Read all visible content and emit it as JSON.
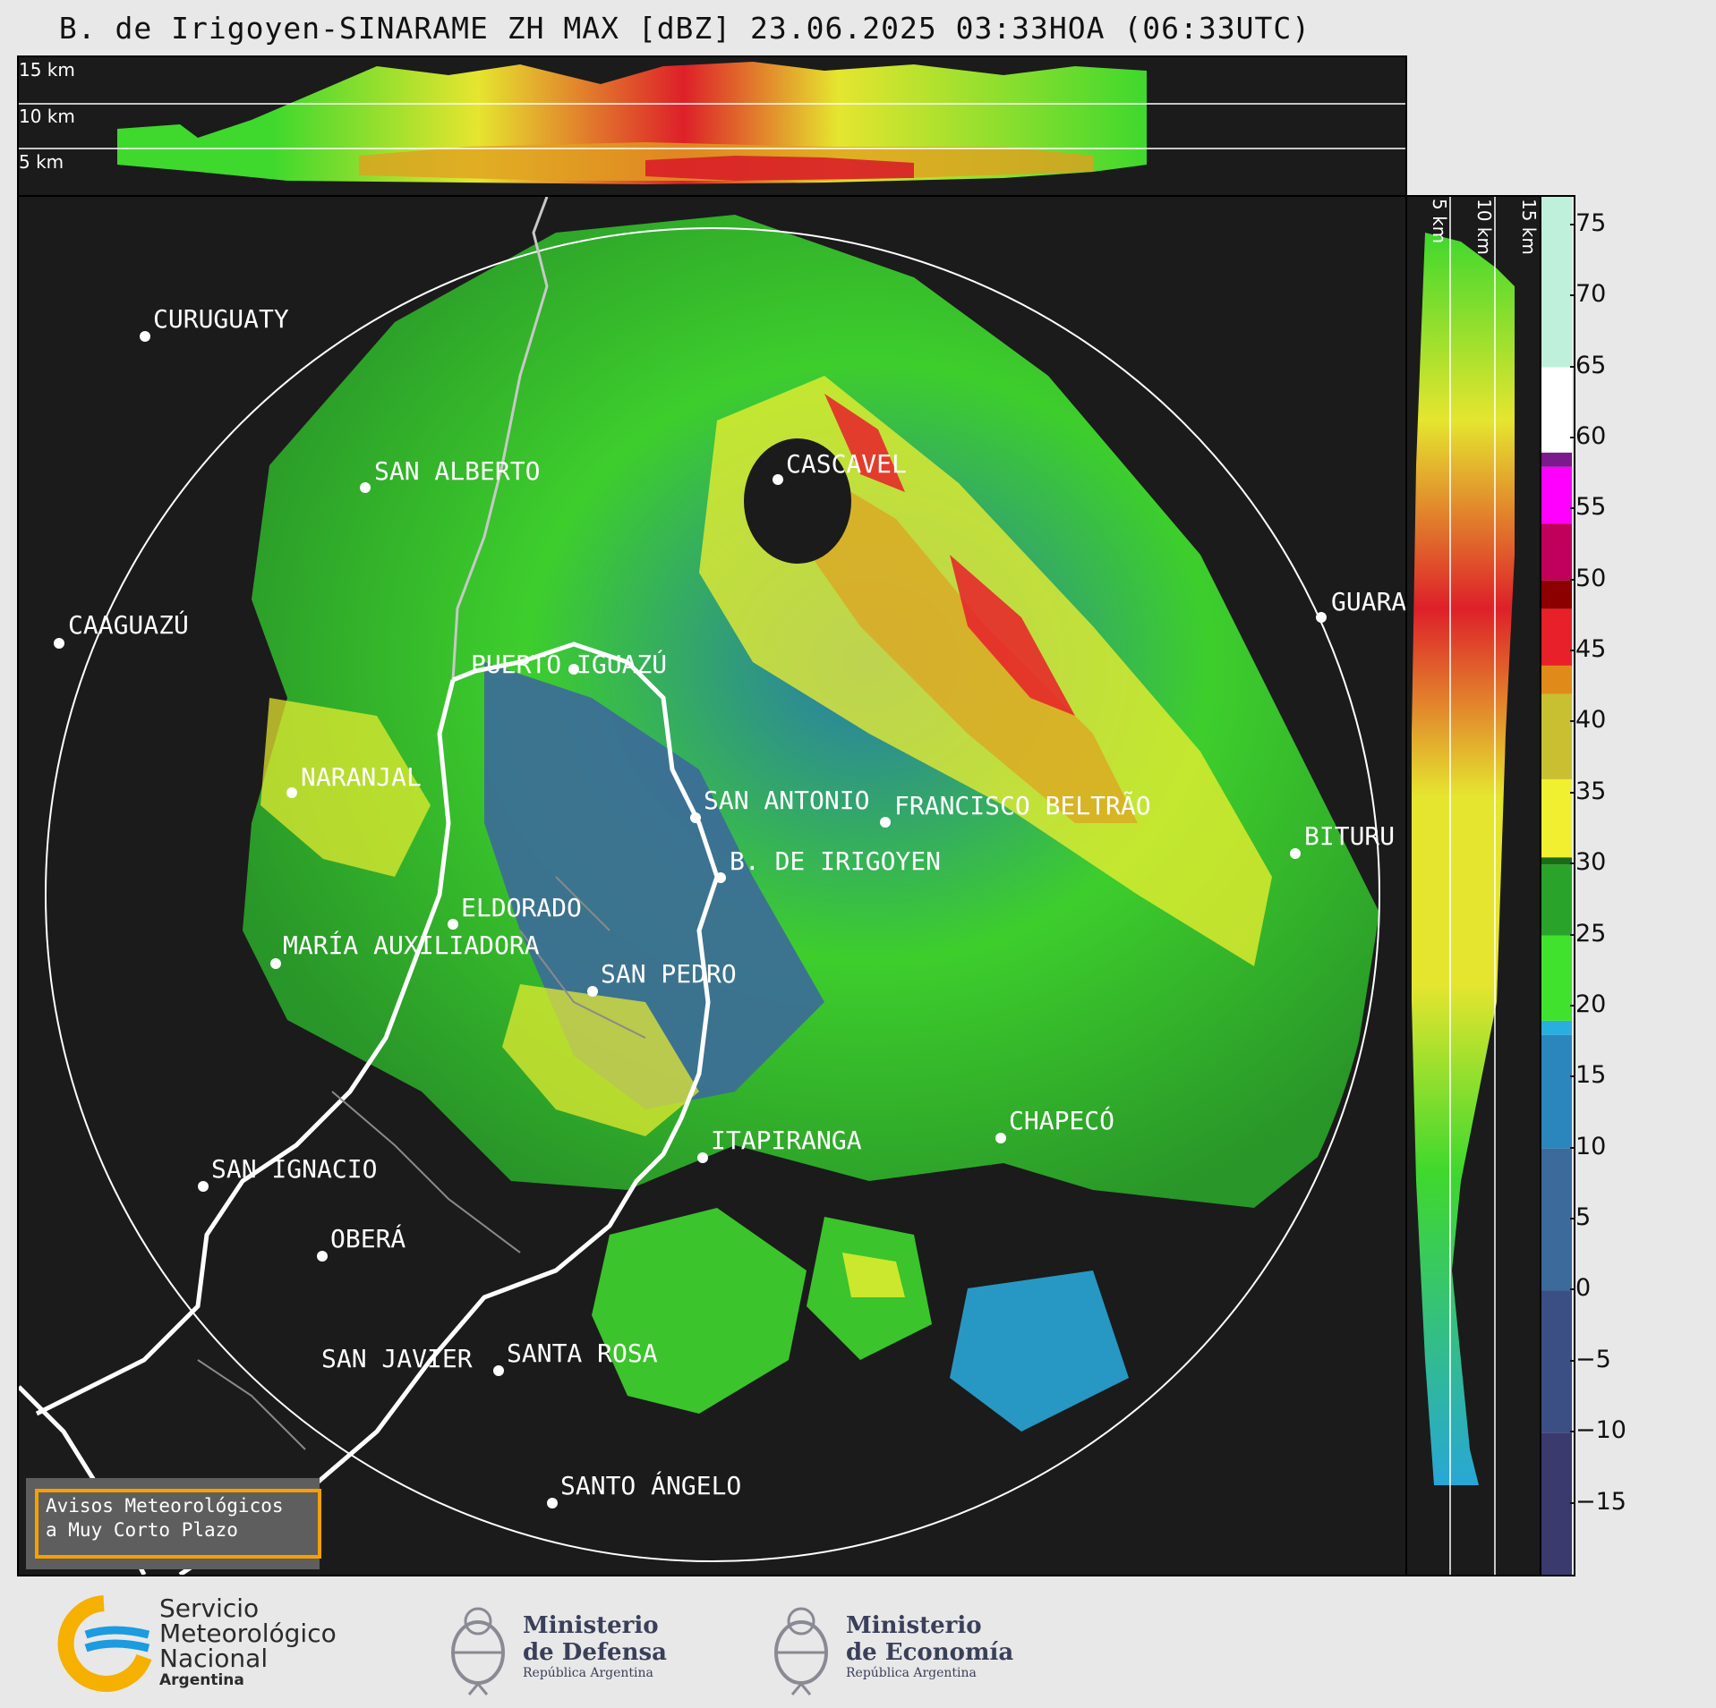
{
  "title": "B. de Irigoyen-SINARAME ZH MAX [dBZ] 23.06.2025 03:33HOA (06:33UTC)",
  "height_labels": [
    "15 km",
    "10 km",
    "5 km"
  ],
  "side_height_labels": [
    "5 km",
    "10 km",
    "15 km"
  ],
  "cities": [
    {
      "name": "CURUGUATY"
    },
    {
      "name": "SAN ALBERTO"
    },
    {
      "name": "CAAGUAZÚ"
    },
    {
      "name": "PUERTO IGUAZÚ"
    },
    {
      "name": "CASCAVEL"
    },
    {
      "name": "GUARA"
    },
    {
      "name": "NARANJAL"
    },
    {
      "name": "SAN ANTONIO"
    },
    {
      "name": "FRANCISCO BELTRÃO"
    },
    {
      "name": "BITURU"
    },
    {
      "name": "B. DE IRIGOYEN"
    },
    {
      "name": "ELDORADO"
    },
    {
      "name": "MARÍA AUXILIADORA"
    },
    {
      "name": "SAN PEDRO"
    },
    {
      "name": "ITAPIRANGA"
    },
    {
      "name": "CHAPECÓ"
    },
    {
      "name": "SAN IGNACIO"
    },
    {
      "name": "OBERÁ"
    },
    {
      "name": "SAN JAVIER"
    },
    {
      "name": "SANTA ROSA"
    },
    {
      "name": "SANTO ÁNGELO"
    }
  ],
  "colorbar": {
    "unit": "dBZ",
    "ticks": [
      "75",
      "70",
      "65",
      "60",
      "55",
      "50",
      "45",
      "40",
      "35",
      "30",
      "25",
      "20",
      "15",
      "10",
      "5",
      "0",
      "−5",
      "−10",
      "−15"
    ],
    "stops": [
      {
        "v": -20,
        "c": "#3b3a6e"
      },
      {
        "v": -10,
        "c": "#3b4f84"
      },
      {
        "v": 0,
        "c": "#3c6a9a"
      },
      {
        "v": 10,
        "c": "#2a86bd"
      },
      {
        "v": 18,
        "c": "#29aee0"
      },
      {
        "v": 19,
        "c": "#41e22e"
      },
      {
        "v": 25,
        "c": "#2aa32a"
      },
      {
        "v": 30,
        "c": "#196b19"
      },
      {
        "v": 30.5,
        "c": "#f0f030"
      },
      {
        "v": 36,
        "c": "#c8c030"
      },
      {
        "v": 42,
        "c": "#e08a1a"
      },
      {
        "v": 44,
        "c": "#e8202a"
      },
      {
        "v": 48,
        "c": "#8c0000"
      },
      {
        "v": 50,
        "c": "#c0005a"
      },
      {
        "v": 54,
        "c": "#ff00ff"
      },
      {
        "v": 58,
        "c": "#7a1a8c"
      },
      {
        "v": 59,
        "c": "#ffffff"
      },
      {
        "v": 65,
        "c": "#bff0dc"
      },
      {
        "v": 77,
        "c": "#7fd9b5"
      }
    ]
  },
  "alert": {
    "line1": "Avisos Meteorológicos",
    "line2": "a Muy Corto Plazo"
  },
  "logos": {
    "smn": {
      "line1": "Servicio",
      "line2": "Meteorológico",
      "line3": "Nacional",
      "line4": "Argentina"
    },
    "defensa": {
      "line1": "Ministerio",
      "line2": "de Defensa",
      "line3": "República Argentina"
    },
    "economia": {
      "line1": "Ministerio",
      "line2": "de Economía",
      "line3": "República Argentina"
    }
  },
  "colors": {
    "background": "#1b1b1b",
    "accent_orange": "#f5a000",
    "smn_blue": "#1b9be0",
    "smn_yellow": "#f5b000"
  }
}
